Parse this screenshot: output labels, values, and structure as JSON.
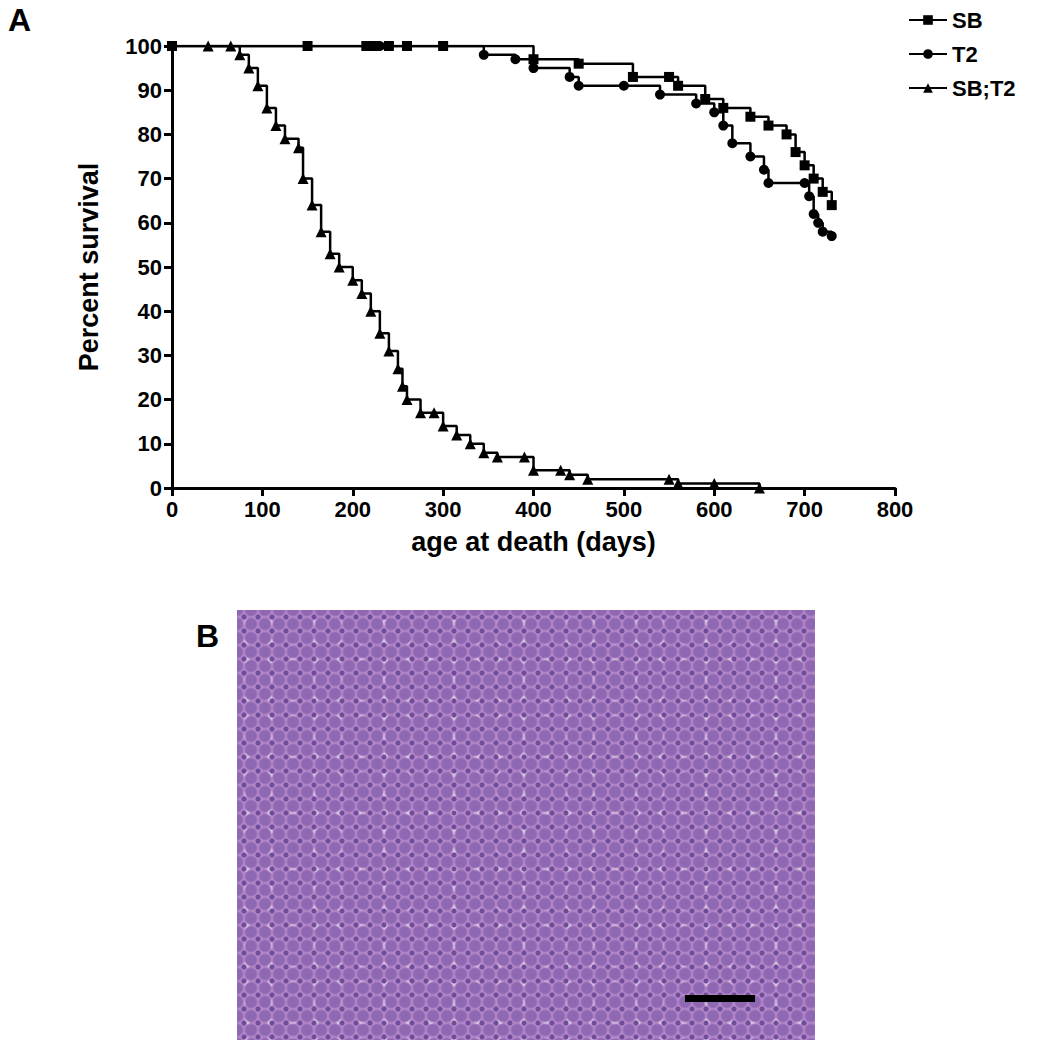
{
  "chart_data": {
    "type": "line",
    "line_style": "step",
    "x_label": "age at death (days)",
    "y_label": "Percent survival",
    "xlim": [
      0,
      800
    ],
    "xticks": [
      0,
      100,
      200,
      300,
      400,
      500,
      600,
      700,
      800
    ],
    "ylim": [
      0,
      100
    ],
    "yticks": [
      0,
      10,
      20,
      30,
      40,
      50,
      60,
      70,
      80,
      90,
      100
    ],
    "legend": "right",
    "grid": false,
    "series": [
      {
        "name": "SB",
        "color": "#000000",
        "marker": "square",
        "x": [
          0,
          150,
          215,
          225,
          240,
          260,
          300,
          400,
          450,
          510,
          550,
          560,
          590,
          610,
          640,
          660,
          680,
          690,
          700,
          710,
          720,
          730
        ],
        "values": [
          100,
          100,
          100,
          100,
          100,
          100,
          100,
          97,
          96,
          93,
          93,
          91,
          88,
          86,
          84,
          82,
          80,
          76,
          73,
          70,
          67,
          64
        ]
      },
      {
        "name": "T2",
        "color": "#000000",
        "marker": "circle",
        "x": [
          0,
          230,
          260,
          345,
          380,
          400,
          440,
          450,
          500,
          540,
          580,
          600,
          610,
          620,
          640,
          655,
          660,
          700,
          705,
          710,
          715,
          720,
          730
        ],
        "values": [
          100,
          100,
          100,
          98,
          97,
          95,
          93,
          91,
          91,
          89,
          87,
          85,
          82,
          78,
          75,
          72,
          69,
          69,
          66,
          62,
          60,
          58,
          57
        ]
      },
      {
        "name": "SB;T2",
        "color": "#000000",
        "marker": "triangle",
        "x": [
          40,
          65,
          75,
          85,
          95,
          105,
          115,
          125,
          140,
          145,
          155,
          165,
          175,
          185,
          200,
          210,
          220,
          230,
          240,
          250,
          255,
          260,
          275,
          290,
          300,
          315,
          330,
          345,
          360,
          390,
          400,
          430,
          440,
          460,
          550,
          560,
          600,
          650
        ],
        "values": [
          100,
          100,
          98,
          95,
          91,
          86,
          82,
          79,
          77,
          70,
          64,
          58,
          53,
          50,
          47,
          44,
          40,
          35,
          31,
          27,
          23,
          20,
          17,
          17,
          14,
          12,
          10,
          8,
          7,
          7,
          4,
          4,
          3,
          2,
          2,
          1,
          1,
          0
        ]
      }
    ]
  },
  "figure": {
    "panel_labels": [
      "A",
      "B"
    ]
  }
}
